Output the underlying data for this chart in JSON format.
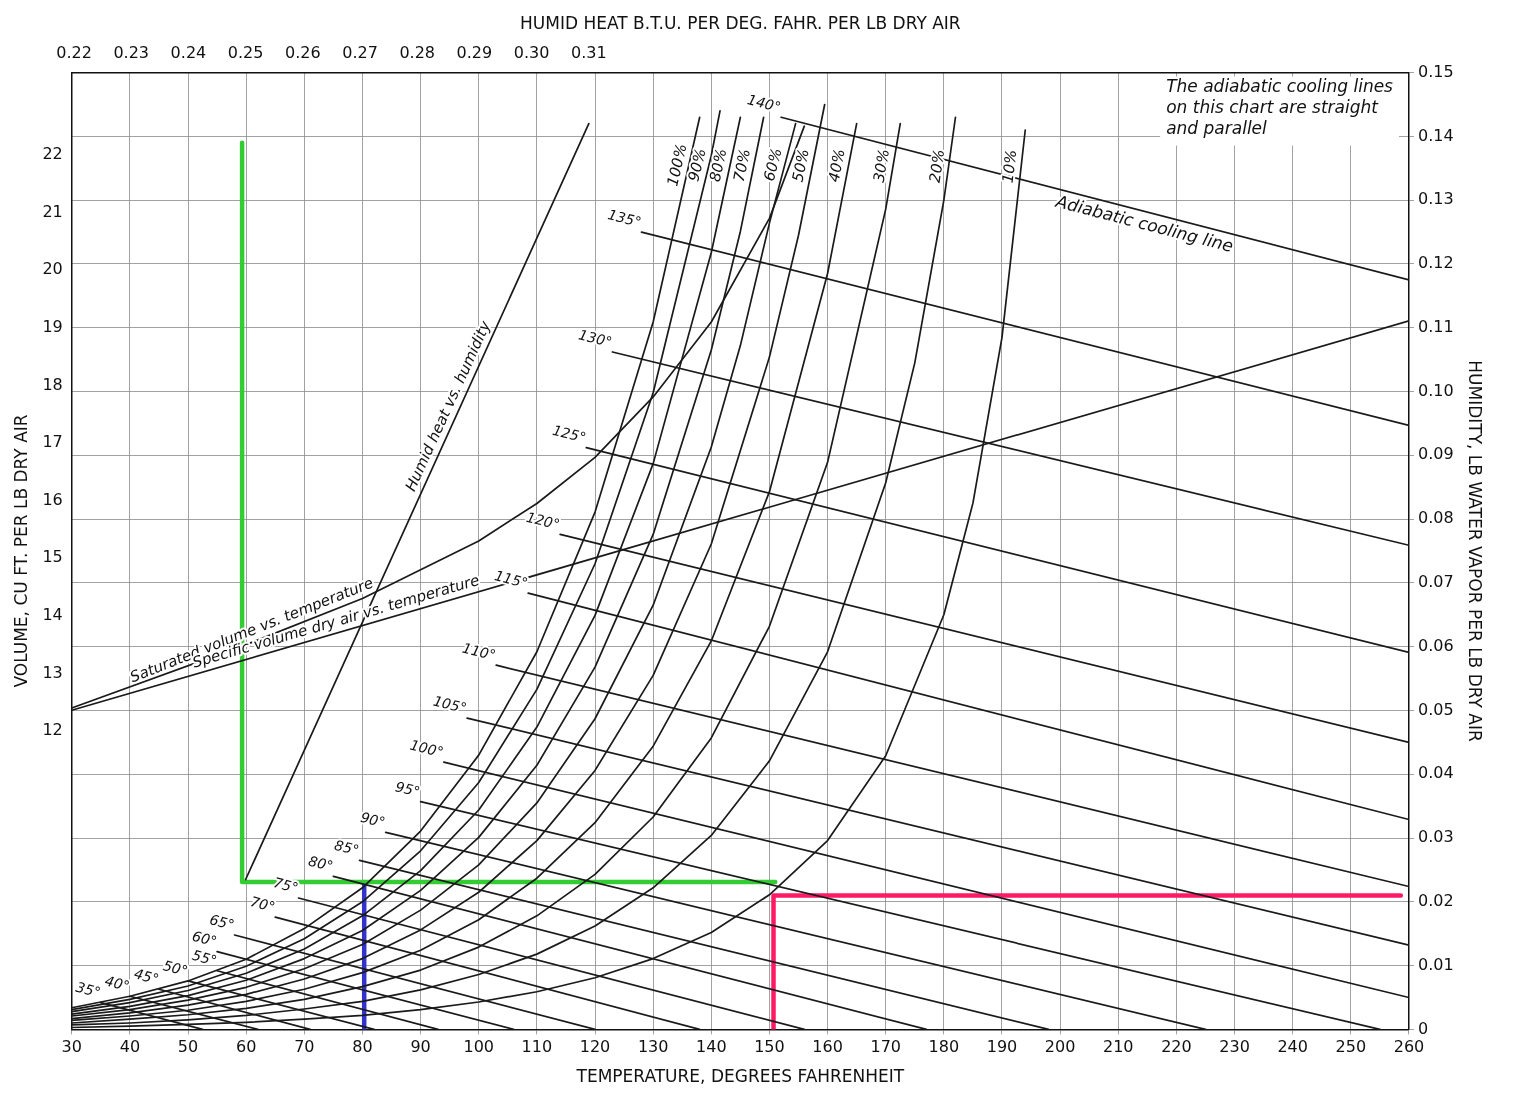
{
  "chart_data": {
    "type": "line",
    "xlabel": "TEMPERATURE, DEGREES FAHRENHEIT",
    "ylabel": "HUMIDITY, LB WATER VAPOR PER LB DRY AIR",
    "y2label": "VOLUME, CU FT. PER LB DRY AIR",
    "x2label": "HUMID HEAT B.T.U. PER DEG. FAHR. PER LB DRY AIR",
    "xlim": [
      30,
      260
    ],
    "xticks": [
      30,
      40,
      50,
      60,
      70,
      80,
      90,
      100,
      110,
      120,
      130,
      140,
      150,
      160,
      170,
      180,
      190,
      200,
      210,
      220,
      230,
      240,
      250,
      260
    ],
    "ylim": [
      0,
      0.15
    ],
    "yticks": [
      0,
      0.01,
      0.02,
      0.03,
      0.04,
      0.05,
      0.06,
      0.07,
      0.08,
      0.09,
      {
        "value": 0.1,
        "label": "0.10"
      },
      0.11,
      0.12,
      0.13,
      0.14,
      0.15
    ],
    "y2lim": [
      6.82,
      23.43
    ],
    "y2ticks": [
      12,
      13,
      14,
      15,
      16,
      17,
      18,
      19,
      20,
      21,
      22
    ],
    "x2lim": [
      0.2196,
      0.4534
    ],
    "x2ticks": [
      0.22,
      0.23,
      0.24,
      0.25,
      0.26,
      0.27,
      0.28,
      0.29,
      {
        "value": 0.3,
        "label": "0.30"
      },
      0.31
    ],
    "grid": true,
    "legend": false,
    "marker": "none",
    "line_style": "solid",
    "annotations": [
      "The adiabatic cooling lines on this chart are straight and parallel",
      {
        "text": "Adiabatic cooling line",
        "x": 215,
        "y": 0.128
      }
    ],
    "series": [
      {
        "name": "100%",
        "color": "#1a1a1a",
        "x": [
          30,
          40,
          50,
          60,
          70,
          80,
          90,
          100,
          110,
          120,
          130,
          138
        ],
        "values": [
          0.0034,
          0.0052,
          0.0076,
          0.011,
          0.0158,
          0.0222,
          0.0311,
          0.043,
          0.0592,
          0.0811,
          0.1109,
          0.143
        ]
      },
      {
        "name": "90%",
        "color": "#1a1a1a",
        "x": [
          30,
          40,
          50,
          60,
          70,
          80,
          90,
          100,
          110,
          120,
          130,
          140,
          141.5
        ],
        "values": [
          0.0031,
          0.0047,
          0.0068,
          0.0099,
          0.0142,
          0.02,
          0.028,
          0.0387,
          0.0533,
          0.073,
          0.0998,
          0.137,
          0.144
        ]
      },
      {
        "name": "80%",
        "color": "#1a1a1a",
        "x": [
          30,
          40,
          50,
          60,
          70,
          80,
          90,
          100,
          110,
          120,
          130,
          140,
          145
        ],
        "values": [
          0.0028,
          0.0042,
          0.0061,
          0.0088,
          0.0126,
          0.0178,
          0.0249,
          0.0344,
          0.0474,
          0.0649,
          0.0887,
          0.1218,
          0.143
        ]
      },
      {
        "name": "70%",
        "color": "#1a1a1a",
        "x": [
          30,
          40,
          50,
          60,
          70,
          80,
          90,
          100,
          110,
          120,
          130,
          140,
          145,
          149
        ],
        "values": [
          0.0024,
          0.0036,
          0.0053,
          0.0077,
          0.0111,
          0.0155,
          0.0218,
          0.0301,
          0.0414,
          0.0568,
          0.0776,
          0.1065,
          0.1251,
          0.143
        ]
      },
      {
        "name": "60%",
        "color": "#1a1a1a",
        "x": [
          30,
          40,
          50,
          60,
          70,
          80,
          90,
          100,
          110,
          120,
          130,
          140,
          145,
          150,
          154.5
        ],
        "values": [
          0.0021,
          0.0031,
          0.0046,
          0.0066,
          0.0095,
          0.0133,
          0.0187,
          0.0258,
          0.0355,
          0.0487,
          0.0665,
          0.0913,
          0.1072,
          0.1264,
          0.142
        ]
      },
      {
        "name": "50%",
        "color": "#1a1a1a",
        "x": [
          30,
          40,
          50,
          60,
          70,
          80,
          90,
          100,
          110,
          120,
          130,
          140,
          150,
          155,
          159.5
        ],
        "values": [
          0.0017,
          0.0026,
          0.0038,
          0.0055,
          0.0079,
          0.0111,
          0.0156,
          0.0215,
          0.0296,
          0.0406,
          0.0555,
          0.0761,
          0.1054,
          0.1245,
          0.145
        ]
      },
      {
        "name": "40%",
        "color": "#1a1a1a",
        "x": [
          30,
          40,
          50,
          60,
          70,
          80,
          90,
          100,
          110,
          120,
          130,
          140,
          150,
          160,
          165
        ],
        "values": [
          0.0014,
          0.0021,
          0.003,
          0.0044,
          0.0063,
          0.0089,
          0.0124,
          0.0172,
          0.0237,
          0.0324,
          0.0444,
          0.0609,
          0.0843,
          0.1185,
          0.142
        ]
      },
      {
        "name": "30%",
        "color": "#1a1a1a",
        "x": [
          30,
          40,
          50,
          60,
          70,
          80,
          90,
          100,
          110,
          120,
          130,
          140,
          150,
          160,
          170,
          172.5
        ],
        "values": [
          0.001,
          0.0016,
          0.0023,
          0.0033,
          0.0047,
          0.0067,
          0.0093,
          0.0129,
          0.0178,
          0.0243,
          0.0333,
          0.0457,
          0.0632,
          0.0889,
          0.1286,
          0.142
        ]
      },
      {
        "name": "20%",
        "color": "#1a1a1a",
        "x": [
          30,
          40,
          50,
          60,
          70,
          80,
          90,
          100,
          110,
          120,
          130,
          140,
          150,
          160,
          170,
          175,
          180,
          182
        ],
        "values": [
          0.0007,
          0.001,
          0.0015,
          0.0022,
          0.0032,
          0.0044,
          0.0062,
          0.0086,
          0.0118,
          0.0162,
          0.0222,
          0.0304,
          0.0421,
          0.0592,
          0.0857,
          0.1045,
          0.13,
          0.143
        ]
      },
      {
        "name": "10%",
        "color": "#1a1a1a",
        "x": [
          30,
          40,
          50,
          60,
          70,
          80,
          90,
          100,
          110,
          120,
          130,
          140,
          150,
          160,
          170,
          180,
          185,
          190,
          194
        ],
        "values": [
          0.0003,
          0.0005,
          0.0008,
          0.0011,
          0.0016,
          0.0022,
          0.0031,
          0.0043,
          0.0059,
          0.0081,
          0.0111,
          0.0152,
          0.0211,
          0.0296,
          0.0429,
          0.065,
          0.0825,
          0.1085,
          0.141
        ]
      },
      {
        "name": "35°",
        "color": "#1a1a1a",
        "x": [
          35,
          52.5
        ],
        "values": [
          0.0042,
          0
        ]
      },
      {
        "name": "40°",
        "color": "#1a1a1a",
        "x": [
          40,
          62
        ],
        "values": [
          0.0052,
          0
        ]
      },
      {
        "name": "45°",
        "color": "#1a1a1a",
        "x": [
          45,
          71
        ],
        "values": [
          0.0063,
          0
        ]
      },
      {
        "name": "50°",
        "color": "#1a1a1a",
        "x": [
          50,
          82
        ],
        "values": [
          0.0076,
          0
        ]
      },
      {
        "name": "55°",
        "color": "#1a1a1a",
        "x": [
          55,
          93
        ],
        "values": [
          0.0092,
          0
        ]
      },
      {
        "name": "60°",
        "color": "#1a1a1a",
        "x": [
          55,
          106
        ],
        "values": [
          0.0122,
          0
        ]
      },
      {
        "name": "65°",
        "color": "#1a1a1a",
        "x": [
          58,
          120
        ],
        "values": [
          0.0148,
          0
        ]
      },
      {
        "name": "70°",
        "color": "#1a1a1a",
        "x": [
          65,
          138
        ],
        "values": [
          0.0176,
          0
        ]
      },
      {
        "name": "75°",
        "color": "#1a1a1a",
        "x": [
          69,
          156
        ],
        "values": [
          0.0206,
          0
        ]
      },
      {
        "name": "80°",
        "color": "#1a1a1a",
        "x": [
          75,
          177
        ],
        "values": [
          0.024,
          0
        ]
      },
      {
        "name": "85°",
        "color": "#1a1a1a",
        "x": [
          79.5,
          198
        ],
        "values": [
          0.0265,
          0
        ]
      },
      {
        "name": "90°",
        "color": "#1a1a1a",
        "x": [
          84,
          225
        ],
        "values": [
          0.0309,
          0
        ]
      },
      {
        "name": "95°",
        "color": "#1a1a1a",
        "x": [
          90,
          255
        ],
        "values": [
          0.0357,
          0
        ]
      },
      {
        "name": "100°",
        "color": "#1a1a1a",
        "x": [
          94,
          260
        ],
        "values": [
          0.0419,
          0.005
        ]
      },
      {
        "name": "105°",
        "color": "#1a1a1a",
        "x": [
          98,
          260
        ],
        "values": [
          0.0488,
          0.0132
        ]
      },
      {
        "name": "110°",
        "color": "#1a1a1a",
        "x": [
          103,
          260
        ],
        "values": [
          0.0571,
          0.0224
        ]
      },
      {
        "name": "115°",
        "color": "#1a1a1a",
        "x": [
          108.5,
          260
        ],
        "values": [
          0.0684,
          0.0329
        ]
      },
      {
        "name": "120°",
        "color": "#1a1a1a",
        "x": [
          114,
          260
        ],
        "values": [
          0.0776,
          0.045
        ]
      },
      {
        "name": "125°",
        "color": "#1a1a1a",
        "x": [
          118.5,
          260
        ],
        "values": [
          0.0912,
          0.0591
        ]
      },
      {
        "name": "130°",
        "color": "#1a1a1a",
        "x": [
          123,
          260
        ],
        "values": [
          0.1062,
          0.0759
        ]
      },
      {
        "name": "135°",
        "color": "#1a1a1a",
        "x": [
          128,
          260
        ],
        "values": [
          0.125,
          0.0947
        ]
      },
      {
        "name": "140°",
        "color": "#1a1a1a",
        "x": [
          152,
          260
        ],
        "values": [
          0.143,
          0.1175
        ]
      },
      {
        "name": "Humid heat vs. humidity",
        "color": "#1a1a1a",
        "axis": "x2",
        "x": [
          0.25,
          0.31
        ],
        "values": [
          0.0235,
          0.142
        ]
      },
      {
        "name": "Saturated volume vs. temperature",
        "color": "#1a1a1a",
        "axis": "y2",
        "x": [
          30,
          60,
          80,
          100,
          110,
          120,
          130,
          140,
          150,
          156
        ],
        "values": [
          12.4,
          13.5,
          14.3,
          15.3,
          15.95,
          16.75,
          17.8,
          19.1,
          20.9,
          22.5
        ]
      },
      {
        "name": "Specific volume dry air vs. temperature",
        "color": "#1a1a1a",
        "axis": "y2",
        "x": [
          30,
          260
        ],
        "values": [
          12.36,
          19.12
        ]
      },
      {
        "color": "#33cc33",
        "x": [
          59.3,
          59.3,
          151
        ],
        "values": [
          0.139,
          0.0231,
          0.0231
        ]
      },
      {
        "color": "#3333cc",
        "x": [
          80.3,
          80.3
        ],
        "values": [
          0,
          0.0231
        ]
      },
      {
        "color": "#ff1a66",
        "x": [
          150.7,
          150.7,
          258.6
        ],
        "values": [
          0,
          0.021,
          0.021
        ]
      }
    ]
  }
}
